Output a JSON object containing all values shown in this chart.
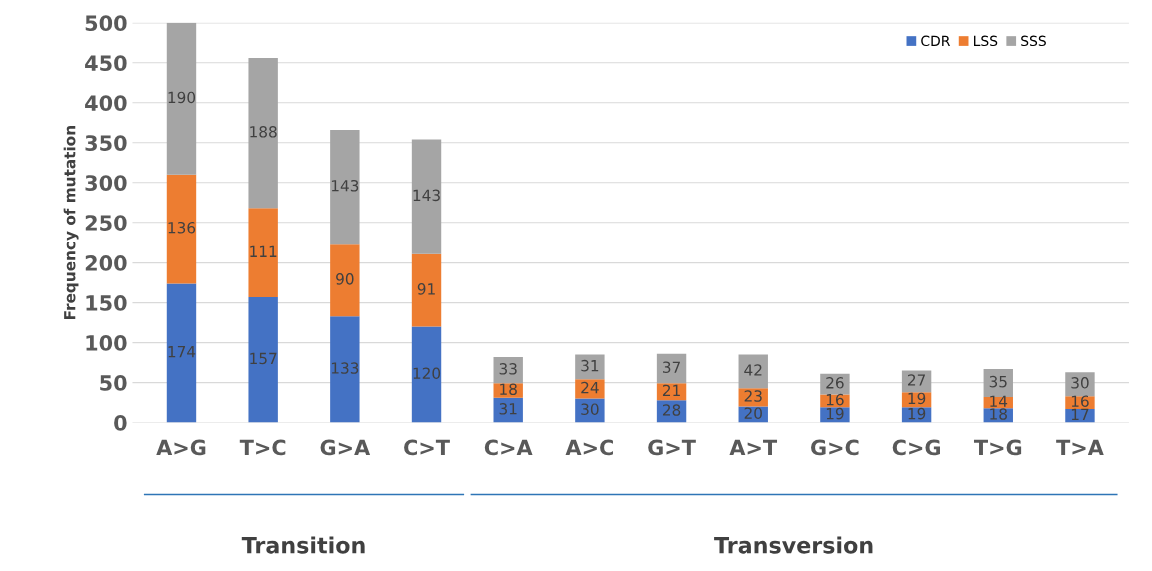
{
  "chart_data": {
    "type": "bar",
    "stacked": true,
    "ylabel": "Frequency of mutation",
    "categories": [
      "A>G",
      "T>C",
      "G>A",
      "C>T",
      "C>A",
      "A>C",
      "G>T",
      "A>T",
      "G>C",
      "C>G",
      "T>G",
      "T>A"
    ],
    "series": [
      {
        "name": "CDR",
        "color": "#4472c4",
        "values": [
          174,
          157,
          133,
          120,
          31,
          30,
          28,
          20,
          19,
          19,
          18,
          17
        ]
      },
      {
        "name": "LSS",
        "color": "#ed7d31",
        "values": [
          136,
          111,
          90,
          91,
          18,
          24,
          21,
          23,
          16,
          19,
          14,
          16
        ]
      },
      {
        "name": "SSS",
        "color": "#a5a5a5",
        "values": [
          190,
          188,
          143,
          143,
          33,
          31,
          37,
          42,
          26,
          27,
          35,
          30
        ]
      }
    ],
    "ylim": [
      0,
      500
    ],
    "yticks": [
      0,
      50,
      100,
      150,
      200,
      250,
      300,
      350,
      400,
      450,
      500
    ],
    "grid": "y",
    "legend": "top right",
    "data_labels": true,
    "annotations": [
      "Transition",
      "Transversion"
    ]
  }
}
